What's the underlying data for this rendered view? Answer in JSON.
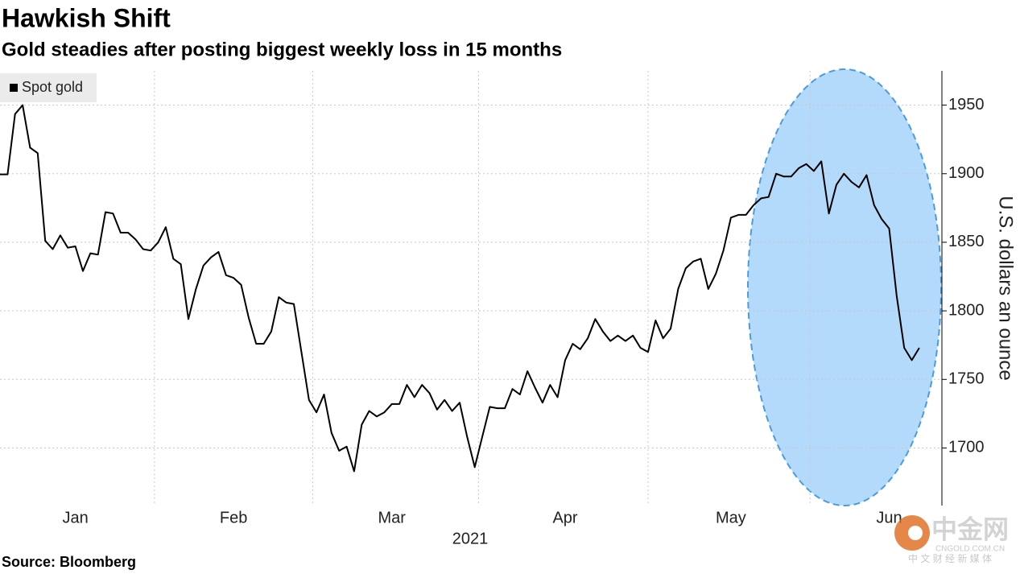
{
  "chart_data": {
    "type": "line",
    "title": "Hawkish Shift",
    "subtitle": "Gold steadies after posting biggest weekly loss in 15 months",
    "ylabel": "U.S. dollars an ounce",
    "xlabel": "2021",
    "source": "Source: Bloomberg",
    "ylim": [
      1658,
      1975
    ],
    "yticks": [
      1700,
      1750,
      1800,
      1850,
      1900,
      1950
    ],
    "grid": true,
    "legend": "top-left",
    "categories": [
      null,
      null,
      null,
      null,
      null,
      null,
      null,
      null,
      null,
      null,
      "Jan",
      null,
      null,
      null,
      null,
      null,
      null,
      null,
      null,
      null,
      null,
      null,
      null,
      null,
      null,
      null,
      null,
      null,
      null,
      null,
      null,
      "Feb",
      null,
      null,
      null,
      null,
      null,
      null,
      null,
      null,
      null,
      null,
      null,
      null,
      null,
      null,
      null,
      null,
      null,
      null,
      null,
      null,
      "Mar",
      null,
      null,
      null,
      null,
      null,
      null,
      null,
      null,
      null,
      null,
      null,
      null,
      null,
      null,
      null,
      null,
      null,
      null,
      null,
      null,
      null,
      null,
      "Apr",
      null,
      null,
      null,
      null,
      null,
      null,
      null,
      null,
      null,
      null,
      null,
      null,
      null,
      null,
      null,
      null,
      null,
      null,
      null,
      null,
      null,
      "May",
      null,
      null,
      null,
      null,
      null,
      null,
      null,
      null,
      null,
      null,
      null,
      null,
      null,
      null,
      null,
      null,
      null,
      null,
      null,
      null,
      "Jun",
      null,
      null,
      null,
      null
    ],
    "series": [
      {
        "name": "Spot gold",
        "color": "#000000",
        "values": [
          1899.5,
          1899.5,
          1943.5,
          1950,
          1919,
          1915,
          1851,
          1845,
          1855,
          1846,
          1847,
          1829,
          1842,
          1841,
          1872,
          1871,
          1857,
          1857,
          1852,
          1845,
          1844,
          1850,
          1861,
          1838,
          1834,
          1794,
          1816,
          1833,
          1839,
          1843,
          1826,
          1824,
          1819,
          1795,
          1776,
          1776,
          1785,
          1810,
          1806,
          1805,
          1770,
          1735,
          1726,
          1739,
          1711,
          1698,
          1701,
          1683,
          1717,
          1727,
          1723,
          1726,
          1732,
          1732,
          1746,
          1737,
          1746,
          1740,
          1728,
          1735,
          1727,
          1733,
          1708,
          1686,
          1708,
          1730,
          1729,
          1729,
          1743,
          1739,
          1756,
          1744,
          1733,
          1746,
          1737,
          1764,
          1776,
          1772,
          1780,
          1794,
          1785,
          1778,
          1782,
          1778,
          1782,
          1773,
          1770,
          1793,
          1780,
          1787,
          1816,
          1831,
          1836,
          1838,
          1816,
          1827,
          1844,
          1868,
          1870,
          1870,
          1877,
          1882,
          1883,
          1900,
          1898,
          1898,
          1904,
          1907,
          1902,
          1909,
          1871,
          1892,
          1900,
          1894,
          1890,
          1899,
          1877,
          1867,
          1860,
          1811,
          1773,
          1764,
          1773
        ]
      }
    ]
  },
  "watermark": {
    "brand": "中金网",
    "site": "CNGOLD.COM.CN",
    "tagline": "中 文 财 经 新 媒 体"
  }
}
